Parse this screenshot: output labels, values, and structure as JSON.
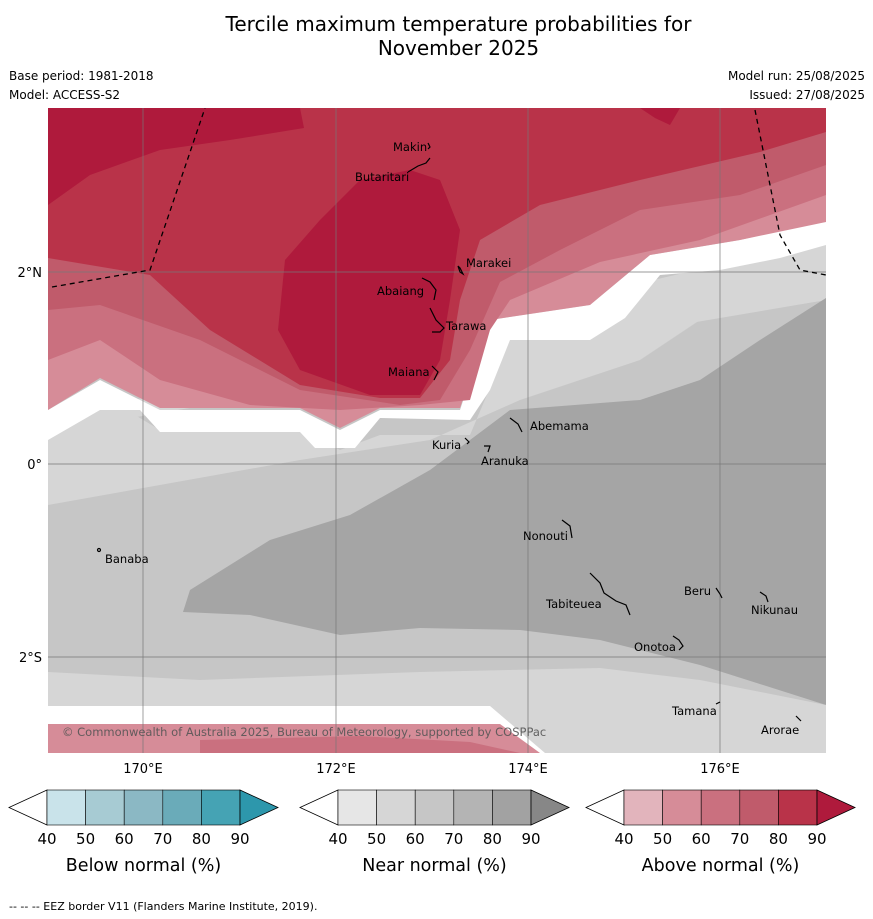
{
  "title_line1": "Tercile maximum temperature probabilities for",
  "title_line2": "November 2025",
  "base_period": "Base period: 1981-2018",
  "model": "Model: ACCESS-S2",
  "model_run": "Model run: 25/08/2025",
  "issued": "Issued: 27/08/2025",
  "copyright": "© Commonwealth of Australia 2025, Bureau of Meteorology, supported by COSPPac",
  "footer_note": "-- -- -- EEZ border V11 (Flanders Marine Institute, 2019).",
  "axes": {
    "lon_labels": [
      "170°E",
      "172°E",
      "174°E",
      "176°E"
    ],
    "lat_labels": [
      "2°N",
      "0°",
      "2°S"
    ]
  },
  "places": [
    {
      "name": "Makin"
    },
    {
      "name": "Butaritari"
    },
    {
      "name": "Marakei"
    },
    {
      "name": "Abaiang"
    },
    {
      "name": "Tarawa"
    },
    {
      "name": "Maiana"
    },
    {
      "name": "Abemama"
    },
    {
      "name": "Kuria"
    },
    {
      "name": "Aranuka"
    },
    {
      "name": "Banaba"
    },
    {
      "name": "Nonouti"
    },
    {
      "name": "Beru"
    },
    {
      "name": "Tabiteuea"
    },
    {
      "name": "Nikunau"
    },
    {
      "name": "Onotoa"
    },
    {
      "name": "Tamana"
    },
    {
      "name": "Arorae"
    }
  ],
  "legends": [
    {
      "label": "Below normal (%)",
      "ticks": [
        "40",
        "50",
        "60",
        "70",
        "80",
        "90"
      ],
      "colors": [
        "#c9e3ea",
        "#a7cbd3",
        "#8bb8c4",
        "#6aabb9",
        "#45a3b4",
        "#2d97ac"
      ]
    },
    {
      "label": "Near normal (%)",
      "ticks": [
        "40",
        "50",
        "60",
        "70",
        "80",
        "90"
      ],
      "colors": [
        "#e6e6e6",
        "#d6d6d6",
        "#c6c6c6",
        "#b4b4b4",
        "#a2a2a2",
        "#878787"
      ]
    },
    {
      "label": "Above normal (%)",
      "ticks": [
        "40",
        "50",
        "60",
        "70",
        "80",
        "90"
      ],
      "colors": [
        "#e2b4bc",
        "#d68c98",
        "#ca707f",
        "#c05b6b",
        "#b93349",
        "#af1a3c"
      ]
    }
  ]
}
